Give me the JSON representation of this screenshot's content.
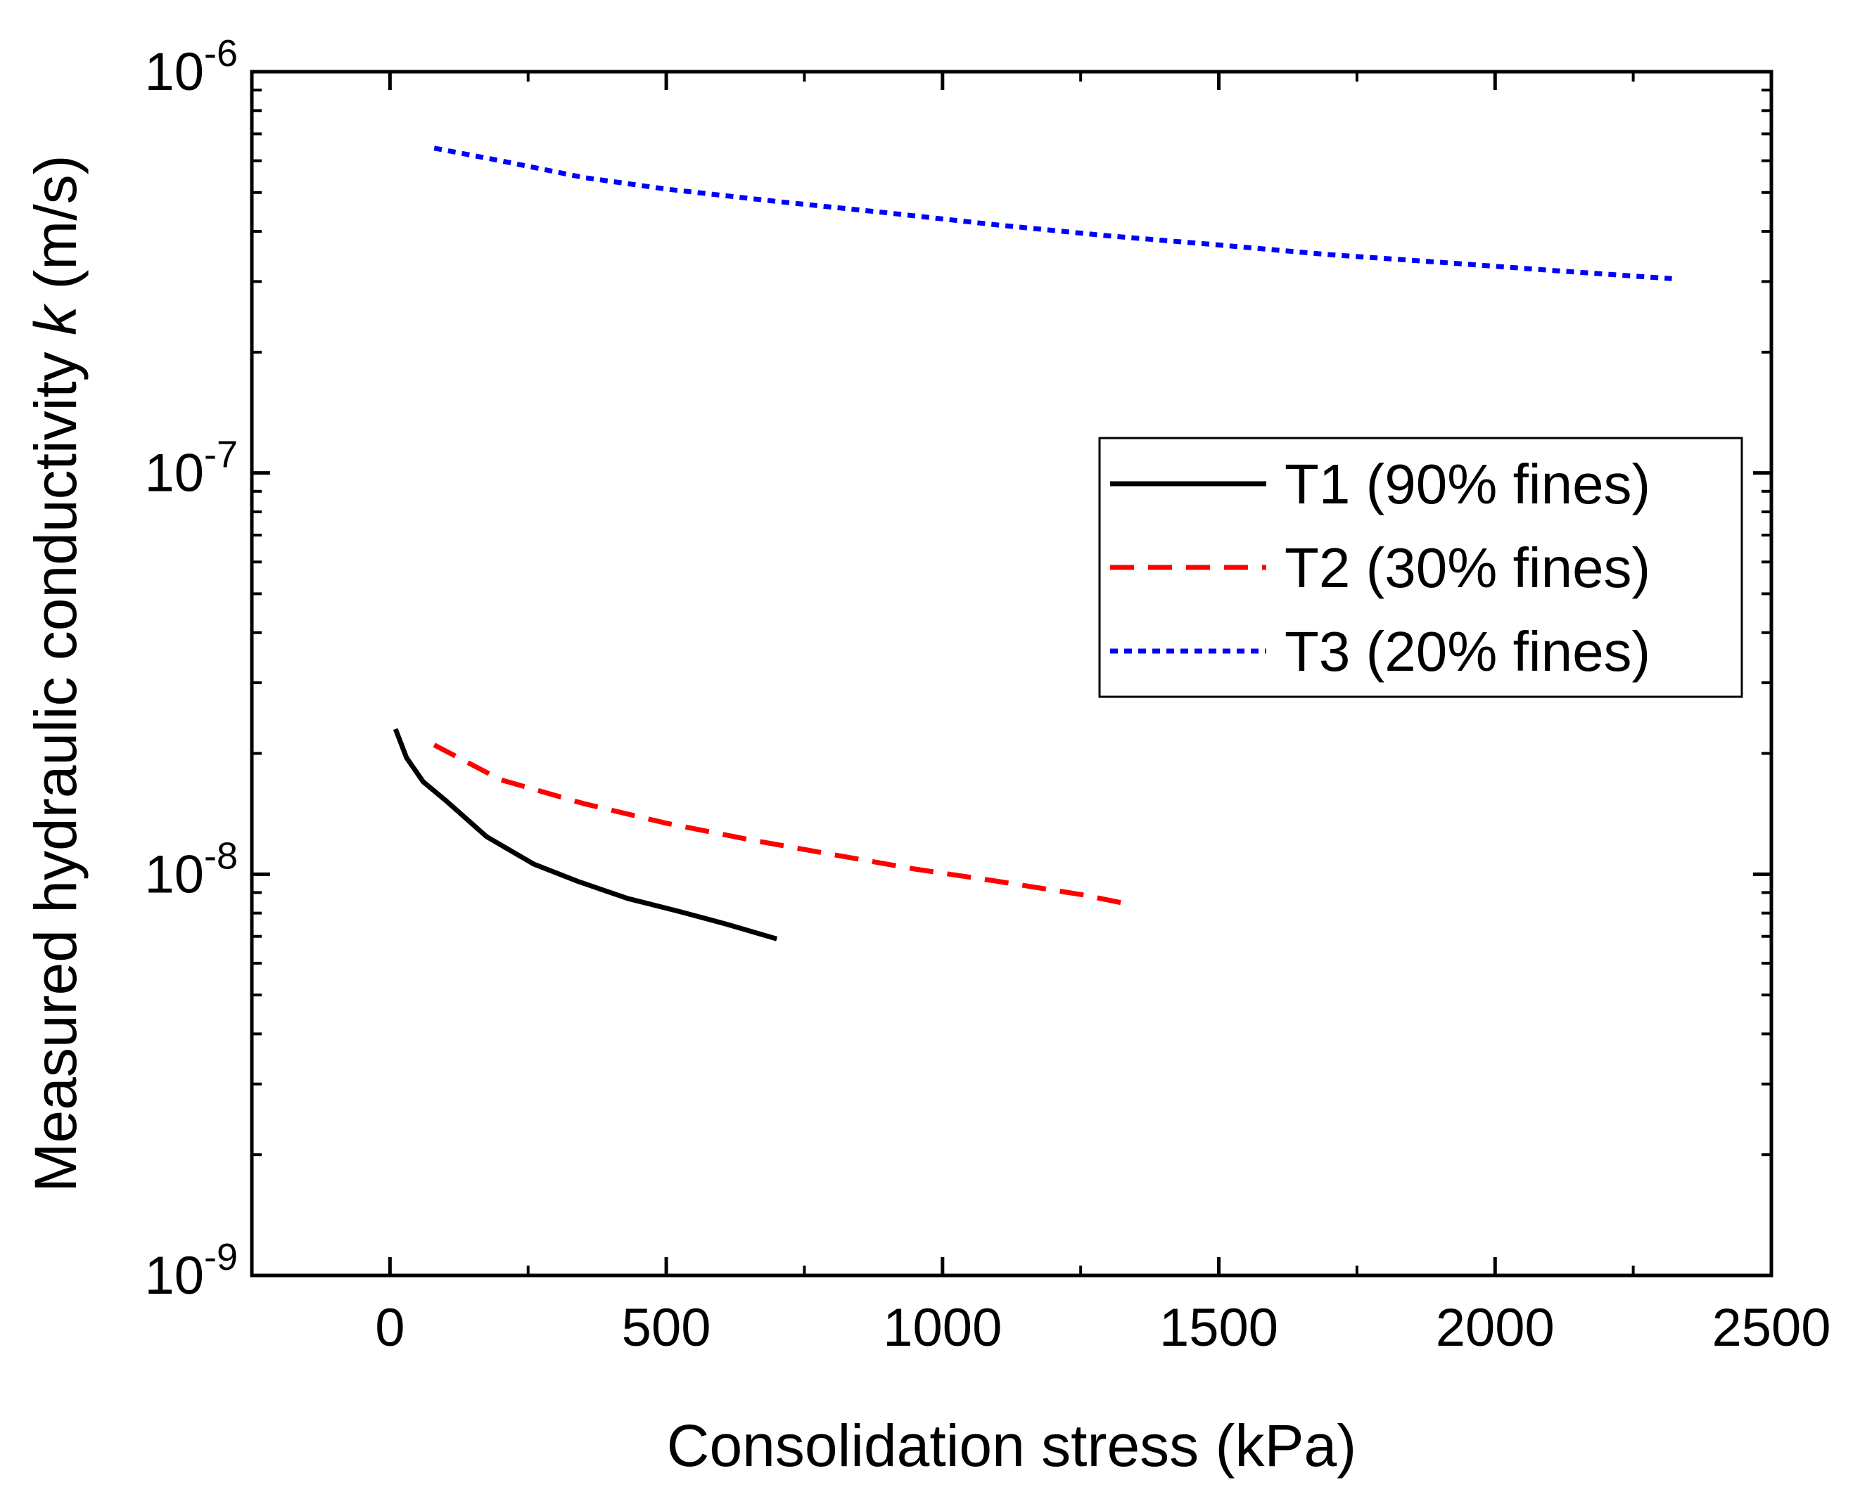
{
  "chart_data": {
    "type": "line",
    "title": "",
    "xlabel": "Consolidation stress (kPa)",
    "ylabel_prefix": "Measured hydraulic conductivity ",
    "ylabel_symbol": "k",
    "ylabel_suffix": " (m/s)",
    "xlim": [
      -250,
      2500
    ],
    "ylim": [
      1e-09,
      1e-06
    ],
    "yscale": "log",
    "x_ticks": [
      0,
      500,
      1000,
      1500,
      2000,
      2500
    ],
    "x_tick_labels": [
      "0",
      "500",
      "1000",
      "1500",
      "2000",
      "2500"
    ],
    "y_ticks": [
      {
        "value": 1e-09,
        "base": "10",
        "exp": "-9"
      },
      {
        "value": 1e-08,
        "base": "10",
        "exp": "-8"
      },
      {
        "value": 1e-07,
        "base": "10",
        "exp": "-7"
      },
      {
        "value": 1e-06,
        "base": "10",
        "exp": "-6"
      }
    ],
    "grid": false,
    "legend_position": "center-right",
    "series": [
      {
        "name": "T1 (90% fines)",
        "color": "#000000",
        "style": "solid",
        "x": [
          10,
          30,
          60,
          100,
          175,
          260,
          340,
          430,
          520,
          610,
          700
        ],
        "y": [
          2.3e-08,
          1.95e-08,
          1.7e-08,
          1.53e-08,
          1.24e-08,
          1.06e-08,
          9.6e-09,
          8.7e-09,
          8.1e-09,
          7.5e-09,
          6.9e-09
        ]
      },
      {
        "name": "T2 (30% fines)",
        "color": "#ff0000",
        "style": "dashed",
        "x": [
          80,
          200,
          350,
          500,
          650,
          800,
          950,
          1100,
          1250,
          1340
        ],
        "y": [
          2.1e-08,
          1.72e-08,
          1.5e-08,
          1.34e-08,
          1.22e-08,
          1.12e-08,
          1.03e-08,
          9.6e-09,
          8.9e-09,
          8.4e-09
        ]
      },
      {
        "name": "T3 (20% fines)",
        "color": "#0000ff",
        "style": "dotted",
        "x": [
          80,
          200,
          350,
          500,
          700,
          900,
          1100,
          1300,
          1500,
          1700,
          1900,
          2100,
          2320
        ],
        "y": [
          6.45e-07,
          6e-07,
          5.45e-07,
          5.1e-07,
          4.75e-07,
          4.45e-07,
          4.15e-07,
          3.9e-07,
          3.7e-07,
          3.5e-07,
          3.35e-07,
          3.2e-07,
          3.05e-07
        ]
      }
    ]
  }
}
